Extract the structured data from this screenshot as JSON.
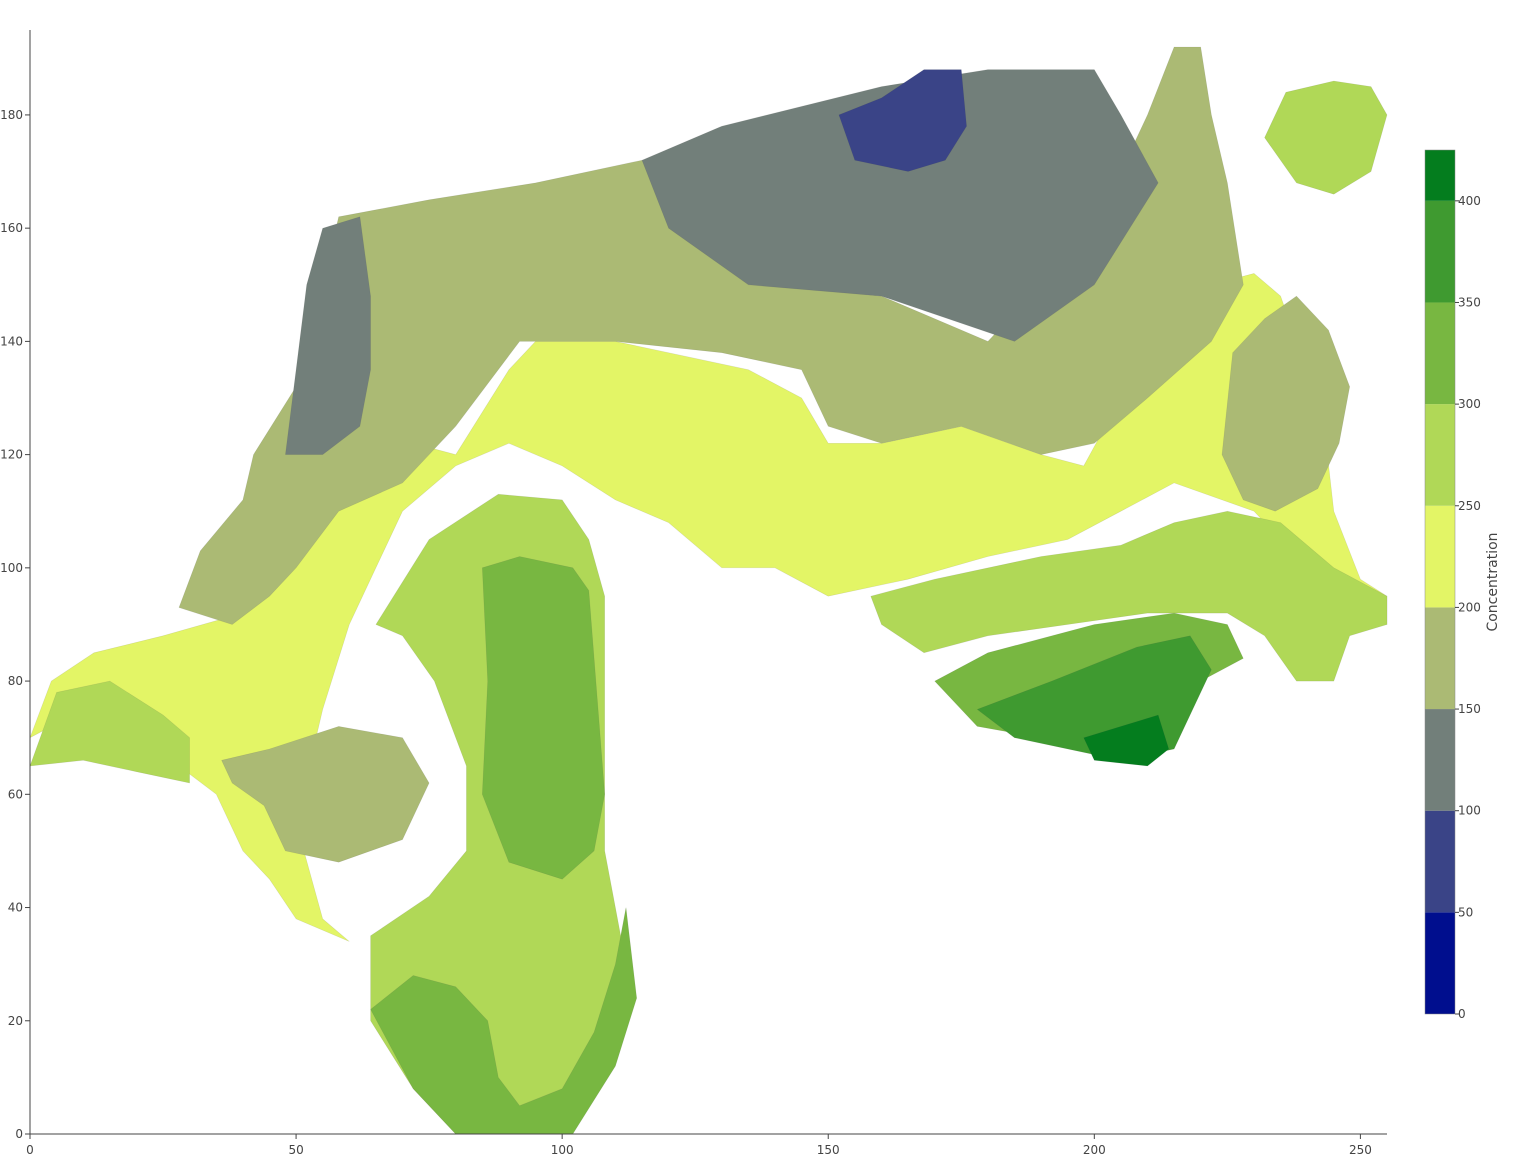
{
  "chart_data": {
    "type": "contour",
    "title": "",
    "xlabel": "",
    "ylabel": "",
    "xlim": [
      0,
      255
    ],
    "ylim": [
      0,
      195
    ],
    "x_ticks": [
      0,
      50,
      100,
      150,
      200,
      250
    ],
    "y_ticks": [
      0,
      20,
      40,
      60,
      80,
      100,
      120,
      140,
      160,
      180
    ],
    "colorbar": {
      "title": "Concentration",
      "range": [
        0,
        425
      ],
      "ticks": [
        0,
        50,
        100,
        150,
        200,
        250,
        300,
        350,
        400
      ],
      "levels": [
        {
          "from": 0,
          "to": 50,
          "color": "#000e8e"
        },
        {
          "from": 50,
          "to": 100,
          "color": "#3a4487"
        },
        {
          "from": 100,
          "to": 150,
          "color": "#727f7a"
        },
        {
          "from": 150,
          "to": 200,
          "color": "#abba74"
        },
        {
          "from": 200,
          "to": 250,
          "color": "#e3f566"
        },
        {
          "from": 250,
          "to": 300,
          "color": "#b0d857"
        },
        {
          "from": 300,
          "to": 350,
          "color": "#78b741"
        },
        {
          "from": 350,
          "to": 400,
          "color": "#3f9a30"
        },
        {
          "from": 400,
          "to": 425,
          "color": "#047d1e"
        }
      ]
    },
    "regions": [
      {
        "level": 200,
        "points": [
          [
            0,
            70
          ],
          [
            4,
            80
          ],
          [
            12,
            85
          ],
          [
            25,
            88
          ],
          [
            40,
            92
          ],
          [
            42,
            102
          ],
          [
            48,
            108
          ],
          [
            55,
            112
          ],
          [
            58,
            116
          ],
          [
            72,
            122
          ],
          [
            80,
            120
          ],
          [
            90,
            135
          ],
          [
            95,
            140
          ],
          [
            110,
            140
          ],
          [
            135,
            135
          ],
          [
            145,
            130
          ],
          [
            150,
            122
          ],
          [
            160,
            122
          ],
          [
            175,
            125
          ],
          [
            190,
            120
          ],
          [
            198,
            118
          ],
          [
            205,
            130
          ],
          [
            222,
            150
          ],
          [
            230,
            152
          ],
          [
            235,
            148
          ],
          [
            238,
            140
          ],
          [
            242,
            135
          ],
          [
            245,
            110
          ],
          [
            250,
            98
          ],
          [
            255,
            95
          ],
          [
            255,
            90
          ],
          [
            248,
            90
          ],
          [
            240,
            100
          ],
          [
            230,
            110
          ],
          [
            215,
            115
          ],
          [
            205,
            110
          ],
          [
            195,
            105
          ],
          [
            180,
            102
          ],
          [
            165,
            98
          ],
          [
            150,
            95
          ],
          [
            140,
            100
          ],
          [
            130,
            100
          ],
          [
            120,
            108
          ],
          [
            110,
            112
          ],
          [
            100,
            118
          ],
          [
            90,
            122
          ],
          [
            80,
            118
          ],
          [
            70,
            110
          ],
          [
            65,
            100
          ],
          [
            60,
            90
          ],
          [
            55,
            75
          ],
          [
            50,
            55
          ],
          [
            55,
            38
          ],
          [
            60,
            34
          ],
          [
            50,
            38
          ],
          [
            45,
            45
          ],
          [
            40,
            50
          ],
          [
            35,
            60
          ],
          [
            28,
            65
          ],
          [
            20,
            70
          ],
          [
            10,
            75
          ],
          [
            0,
            70
          ]
        ]
      },
      {
        "level": 150,
        "points": [
          [
            42,
            120
          ],
          [
            52,
            135
          ],
          [
            55,
            150
          ],
          [
            58,
            162
          ],
          [
            75,
            165
          ],
          [
            95,
            168
          ],
          [
            115,
            172
          ],
          [
            125,
            160
          ],
          [
            140,
            150
          ],
          [
            160,
            148
          ],
          [
            180,
            140
          ],
          [
            200,
            160
          ],
          [
            210,
            180
          ],
          [
            215,
            192
          ],
          [
            220,
            192
          ],
          [
            222,
            180
          ],
          [
            225,
            168
          ],
          [
            228,
            150
          ],
          [
            222,
            140
          ],
          [
            210,
            130
          ],
          [
            200,
            122
          ],
          [
            190,
            120
          ],
          [
            175,
            125
          ],
          [
            160,
            122
          ],
          [
            150,
            125
          ],
          [
            145,
            135
          ],
          [
            130,
            138
          ],
          [
            110,
            140
          ],
          [
            92,
            140
          ],
          [
            80,
            125
          ],
          [
            70,
            115
          ],
          [
            58,
            110
          ],
          [
            50,
            100
          ],
          [
            45,
            95
          ],
          [
            38,
            90
          ],
          [
            28,
            93
          ],
          [
            32,
            103
          ],
          [
            40,
            112
          ],
          [
            42,
            120
          ]
        ]
      },
      {
        "level": 150,
        "points": [
          [
            36,
            66
          ],
          [
            45,
            68
          ],
          [
            58,
            72
          ],
          [
            70,
            70
          ],
          [
            75,
            62
          ],
          [
            70,
            52
          ],
          [
            58,
            48
          ],
          [
            48,
            50
          ],
          [
            44,
            58
          ],
          [
            38,
            62
          ],
          [
            36,
            66
          ]
        ]
      },
      {
        "level": 150,
        "points": [
          [
            226,
            138
          ],
          [
            232,
            144
          ],
          [
            238,
            148
          ],
          [
            244,
            142
          ],
          [
            248,
            132
          ],
          [
            246,
            122
          ],
          [
            242,
            114
          ],
          [
            234,
            110
          ],
          [
            228,
            112
          ],
          [
            224,
            120
          ],
          [
            226,
            138
          ]
        ]
      },
      {
        "level": 100,
        "points": [
          [
            48,
            120
          ],
          [
            50,
            135
          ],
          [
            52,
            150
          ],
          [
            55,
            160
          ],
          [
            62,
            162
          ],
          [
            64,
            148
          ],
          [
            64,
            135
          ],
          [
            62,
            125
          ],
          [
            55,
            120
          ],
          [
            48,
            120
          ]
        ]
      },
      {
        "level": 100,
        "points": [
          [
            115,
            172
          ],
          [
            120,
            160
          ],
          [
            135,
            150
          ],
          [
            160,
            148
          ],
          [
            185,
            140
          ],
          [
            200,
            150
          ],
          [
            212,
            168
          ],
          [
            205,
            180
          ],
          [
            200,
            188
          ],
          [
            180,
            188
          ],
          [
            160,
            185
          ],
          [
            130,
            178
          ],
          [
            115,
            172
          ]
        ]
      },
      {
        "level": 50,
        "points": [
          [
            152,
            180
          ],
          [
            160,
            183
          ],
          [
            168,
            188
          ],
          [
            175,
            188
          ],
          [
            176,
            178
          ],
          [
            172,
            172
          ],
          [
            165,
            170
          ],
          [
            155,
            172
          ],
          [
            152,
            180
          ]
        ]
      },
      {
        "level": 250,
        "points": [
          [
            0,
            65
          ],
          [
            5,
            78
          ],
          [
            15,
            80
          ],
          [
            25,
            74
          ],
          [
            30,
            70
          ],
          [
            30,
            62
          ],
          [
            20,
            64
          ],
          [
            10,
            66
          ],
          [
            0,
            65
          ]
        ]
      },
      {
        "level": 250,
        "points": [
          [
            65,
            90
          ],
          [
            75,
            105
          ],
          [
            88,
            113
          ],
          [
            100,
            112
          ],
          [
            105,
            105
          ],
          [
            108,
            95
          ],
          [
            108,
            50
          ],
          [
            110,
            40
          ],
          [
            112,
            30
          ],
          [
            112,
            20
          ],
          [
            108,
            10
          ],
          [
            100,
            0
          ],
          [
            80,
            0
          ],
          [
            72,
            8
          ],
          [
            64,
            20
          ],
          [
            64,
            35
          ],
          [
            75,
            42
          ],
          [
            82,
            50
          ],
          [
            82,
            65
          ],
          [
            76,
            80
          ],
          [
            70,
            88
          ],
          [
            65,
            90
          ]
        ]
      },
      {
        "level": 250,
        "points": [
          [
            158,
            95
          ],
          [
            170,
            98
          ],
          [
            190,
            102
          ],
          [
            205,
            104
          ],
          [
            215,
            108
          ],
          [
            225,
            110
          ],
          [
            235,
            108
          ],
          [
            245,
            100
          ],
          [
            255,
            95
          ],
          [
            255,
            90
          ],
          [
            248,
            88
          ],
          [
            245,
            80
          ],
          [
            238,
            80
          ],
          [
            232,
            88
          ],
          [
            225,
            92
          ],
          [
            210,
            92
          ],
          [
            195,
            90
          ],
          [
            180,
            88
          ],
          [
            168,
            85
          ],
          [
            160,
            90
          ],
          [
            158,
            95
          ]
        ]
      },
      {
        "level": 250,
        "points": [
          [
            232,
            176
          ],
          [
            236,
            184
          ],
          [
            245,
            186
          ],
          [
            252,
            185
          ],
          [
            255,
            180
          ],
          [
            252,
            170
          ],
          [
            245,
            166
          ],
          [
            238,
            168
          ],
          [
            232,
            176
          ]
        ]
      },
      {
        "level": 300,
        "points": [
          [
            85,
            100
          ],
          [
            92,
            102
          ],
          [
            102,
            100
          ],
          [
            105,
            96
          ],
          [
            108,
            60
          ],
          [
            106,
            50
          ],
          [
            100,
            45
          ],
          [
            90,
            48
          ],
          [
            85,
            60
          ],
          [
            86,
            80
          ],
          [
            85,
            100
          ]
        ]
      },
      {
        "level": 300,
        "points": [
          [
            64,
            22
          ],
          [
            72,
            28
          ],
          [
            80,
            26
          ],
          [
            86,
            20
          ],
          [
            88,
            10
          ],
          [
            92,
            5
          ],
          [
            100,
            8
          ],
          [
            106,
            18
          ],
          [
            110,
            30
          ],
          [
            112,
            40
          ],
          [
            114,
            24
          ],
          [
            110,
            12
          ],
          [
            102,
            0
          ],
          [
            80,
            0
          ],
          [
            72,
            8
          ],
          [
            64,
            22
          ]
        ]
      },
      {
        "level": 300,
        "points": [
          [
            170,
            80
          ],
          [
            180,
            85
          ],
          [
            200,
            90
          ],
          [
            215,
            92
          ],
          [
            225,
            90
          ],
          [
            228,
            84
          ],
          [
            220,
            80
          ],
          [
            212,
            75
          ],
          [
            202,
            72
          ],
          [
            190,
            70
          ],
          [
            178,
            72
          ],
          [
            170,
            80
          ]
        ]
      },
      {
        "level": 350,
        "points": [
          [
            178,
            75
          ],
          [
            192,
            80
          ],
          [
            208,
            86
          ],
          [
            218,
            88
          ],
          [
            222,
            82
          ],
          [
            218,
            74
          ],
          [
            215,
            68
          ],
          [
            205,
            66
          ],
          [
            195,
            68
          ],
          [
            185,
            70
          ],
          [
            178,
            75
          ]
        ]
      },
      {
        "level": 400,
        "points": [
          [
            198,
            70
          ],
          [
            205,
            72
          ],
          [
            212,
            74
          ],
          [
            214,
            68
          ],
          [
            210,
            65
          ],
          [
            200,
            66
          ],
          [
            198,
            70
          ]
        ]
      }
    ]
  }
}
